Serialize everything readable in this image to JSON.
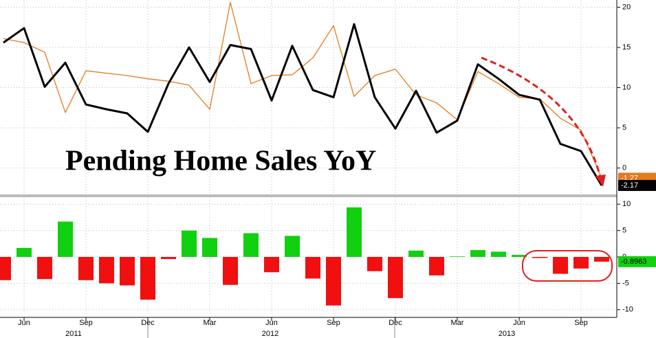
{
  "chart_data": [
    {
      "type": "line",
      "title": "Pending Home Sales YoY",
      "series": [
        {
          "color": "#e07b20",
          "width": 1.3,
          "values": [
            16.1,
            15.6,
            14.4,
            6.9,
            12.1,
            11.8,
            11.5,
            11.1,
            10.8,
            10.3,
            7.3,
            20.6,
            10.5,
            11.5,
            11.6,
            13.7,
            17.7,
            8.9,
            11.5,
            12.3,
            9.1,
            8.1,
            6.0,
            12.0,
            10.5,
            8.8,
            8.6,
            6.2,
            4.7,
            -1.27
          ]
        },
        {
          "color": "#000000",
          "width": 3,
          "values": [
            15.6,
            17.4,
            10.1,
            13.1,
            7.9,
            7.3,
            6.8,
            4.5,
            10.5,
            15.0,
            10.7,
            15.3,
            14.8,
            8.4,
            15.2,
            9.7,
            8.8,
            17.9,
            8.8,
            4.9,
            9.6,
            4.4,
            5.9,
            12.9,
            11.1,
            9.1,
            8.5,
            3.0,
            2.1,
            -2.17
          ]
        }
      ],
      "ylim": [
        -3.2,
        20.9
      ],
      "yticks": [
        20,
        15,
        10,
        5,
        0
      ],
      "grid": true
    },
    {
      "type": "bar",
      "categories": [
        null,
        "Jun",
        null,
        null,
        "Sep",
        null,
        null,
        "Dec",
        null,
        null,
        "Mar",
        null,
        null,
        "Jun",
        null,
        null,
        "Sep",
        null,
        null,
        "Dec",
        null,
        null,
        "Mar",
        null,
        null,
        "Jun",
        null,
        null,
        "Sep",
        null
      ],
      "years": [
        "2011",
        "2012",
        "2013"
      ],
      "values": [
        -4.4,
        1.7,
        -4.2,
        6.7,
        -4.4,
        -5.0,
        -5.4,
        -8.1,
        -0.4,
        5.0,
        3.6,
        -5.3,
        4.5,
        -2.9,
        4.0,
        -4.1,
        -9.2,
        9.4,
        -2.7,
        -7.8,
        1.2,
        -3.5,
        0.1,
        1.3,
        1.0,
        0.4,
        -0.2,
        -3.2,
        -2.2,
        -0.8963
      ],
      "positive_color": "#10d010",
      "negative_color": "#f01010",
      "ylim": [
        -11.2,
        11.2
      ],
      "yticks": [
        10,
        5,
        0,
        -5,
        -10
      ],
      "grid": true
    }
  ]
}
